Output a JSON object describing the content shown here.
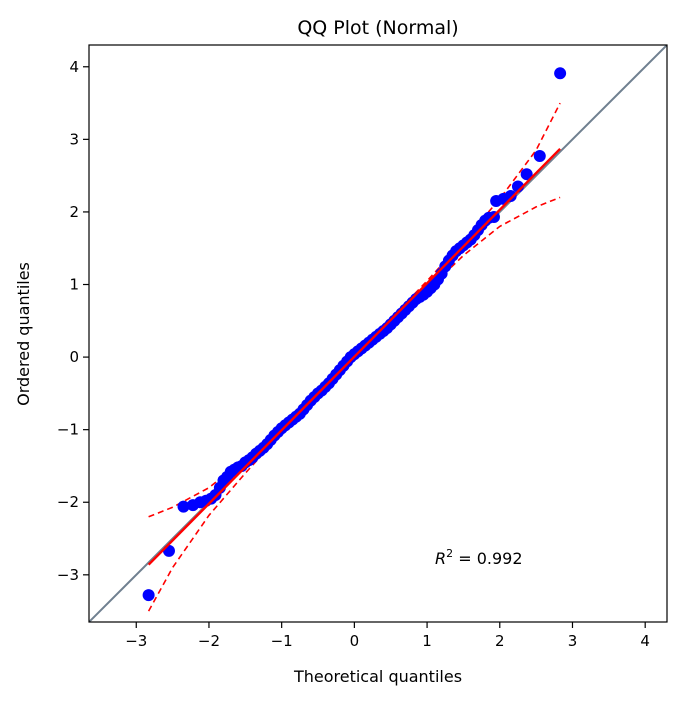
{
  "chart_data": {
    "type": "scatter",
    "title": "QQ Plot (Normal)",
    "xlabel": "Theoretical quantiles",
    "ylabel": "Ordered quantiles",
    "xlim": [
      -3.65,
      4.3
    ],
    "ylim": [
      -3.65,
      4.3
    ],
    "xticks": [
      -3,
      -2,
      -1,
      0,
      1,
      2,
      3,
      4
    ],
    "yticks": [
      -3,
      -2,
      -1,
      0,
      1,
      2,
      3,
      4
    ],
    "tick_labels": [
      "−3",
      "−2",
      "−1",
      "0",
      "1",
      "2",
      "3",
      "4"
    ],
    "grid": false,
    "annotation": {
      "prefix": "R",
      "superscript": "2",
      "text": " = 0.992"
    },
    "reference_line": {
      "from": [
        -3.65,
        -3.65
      ],
      "to": [
        4.3,
        4.3
      ],
      "color": "#708090"
    },
    "fit_line": {
      "from": [
        -2.83,
        -2.86
      ],
      "to": [
        2.83,
        2.87
      ],
      "color": "#ff0000"
    },
    "confidence_band": {
      "color": "#ff0000",
      "upper": [
        [
          -2.83,
          -2.2
        ],
        [
          -2.5,
          -2.07
        ],
        [
          -2.0,
          -1.8
        ],
        [
          -1.5,
          -1.4
        ],
        [
          -1.0,
          -0.92
        ],
        [
          -0.5,
          -0.45
        ],
        [
          0.0,
          0.03
        ],
        [
          0.5,
          0.53
        ],
        [
          1.0,
          1.05
        ],
        [
          1.5,
          1.6
        ],
        [
          2.0,
          2.18
        ],
        [
          2.5,
          2.85
        ],
        [
          2.83,
          3.5
        ]
      ],
      "lower": [
        [
          -2.83,
          -3.5
        ],
        [
          -2.5,
          -2.9
        ],
        [
          -2.0,
          -2.18
        ],
        [
          -1.5,
          -1.6
        ],
        [
          -1.0,
          -1.05
        ],
        [
          -0.5,
          -0.53
        ],
        [
          0.0,
          -0.03
        ],
        [
          0.5,
          0.45
        ],
        [
          1.0,
          0.92
        ],
        [
          1.5,
          1.4
        ],
        [
          2.0,
          1.8
        ],
        [
          2.5,
          2.07
        ],
        [
          2.83,
          2.2
        ]
      ]
    },
    "series": [
      {
        "color": "#0000ff",
        "points": [
          [
            -2.83,
            -3.28
          ],
          [
            -2.55,
            -2.67
          ],
          [
            -2.35,
            -2.06
          ],
          [
            -2.22,
            -2.04
          ],
          [
            -2.12,
            -2.0
          ],
          [
            -2.04,
            -1.98
          ],
          [
            -1.97,
            -1.95
          ],
          [
            -1.91,
            -1.9
          ],
          [
            -1.85,
            -1.8
          ],
          [
            -1.8,
            -1.7
          ],
          [
            -1.75,
            -1.65
          ],
          [
            -1.7,
            -1.58
          ],
          [
            -1.65,
            -1.55
          ],
          [
            -1.6,
            -1.52
          ],
          [
            -1.55,
            -1.5
          ],
          [
            -1.5,
            -1.45
          ],
          [
            -1.45,
            -1.42
          ],
          [
            -1.4,
            -1.38
          ],
          [
            -1.35,
            -1.33
          ],
          [
            -1.3,
            -1.29
          ],
          [
            -1.25,
            -1.25
          ],
          [
            -1.2,
            -1.2
          ],
          [
            -1.15,
            -1.14
          ],
          [
            -1.1,
            -1.08
          ],
          [
            -1.05,
            -1.03
          ],
          [
            -1.0,
            -0.98
          ],
          [
            -0.95,
            -0.94
          ],
          [
            -0.9,
            -0.9
          ],
          [
            -0.85,
            -0.86
          ],
          [
            -0.8,
            -0.82
          ],
          [
            -0.75,
            -0.78
          ],
          [
            -0.7,
            -0.72
          ],
          [
            -0.65,
            -0.66
          ],
          [
            -0.6,
            -0.6
          ],
          [
            -0.55,
            -0.55
          ],
          [
            -0.5,
            -0.5
          ],
          [
            -0.45,
            -0.46
          ],
          [
            -0.4,
            -0.41
          ],
          [
            -0.35,
            -0.36
          ],
          [
            -0.3,
            -0.3
          ],
          [
            -0.25,
            -0.24
          ],
          [
            -0.2,
            -0.18
          ],
          [
            -0.15,
            -0.12
          ],
          [
            -0.1,
            -0.06
          ],
          [
            -0.05,
            0.0
          ],
          [
            0.0,
            0.04
          ],
          [
            0.05,
            0.08
          ],
          [
            0.1,
            0.12
          ],
          [
            0.15,
            0.16
          ],
          [
            0.2,
            0.2
          ],
          [
            0.25,
            0.24
          ],
          [
            0.3,
            0.28
          ],
          [
            0.35,
            0.32
          ],
          [
            0.4,
            0.36
          ],
          [
            0.45,
            0.4
          ],
          [
            0.5,
            0.45
          ],
          [
            0.55,
            0.5
          ],
          [
            0.6,
            0.55
          ],
          [
            0.65,
            0.6
          ],
          [
            0.7,
            0.65
          ],
          [
            0.75,
            0.7
          ],
          [
            0.8,
            0.75
          ],
          [
            0.85,
            0.8
          ],
          [
            0.9,
            0.83
          ],
          [
            0.95,
            0.86
          ],
          [
            1.0,
            0.9
          ],
          [
            1.05,
            0.95
          ],
          [
            1.1,
            1.0
          ],
          [
            1.15,
            1.07
          ],
          [
            1.2,
            1.15
          ],
          [
            1.25,
            1.25
          ],
          [
            1.3,
            1.33
          ],
          [
            1.35,
            1.4
          ],
          [
            1.4,
            1.46
          ],
          [
            1.45,
            1.5
          ],
          [
            1.5,
            1.54
          ],
          [
            1.55,
            1.58
          ],
          [
            1.6,
            1.62
          ],
          [
            1.65,
            1.68
          ],
          [
            1.7,
            1.75
          ],
          [
            1.75,
            1.82
          ],
          [
            1.8,
            1.88
          ],
          [
            1.85,
            1.92
          ],
          [
            1.92,
            1.93
          ],
          [
            1.95,
            2.15
          ],
          [
            2.05,
            2.18
          ],
          [
            2.15,
            2.22
          ],
          [
            2.25,
            2.35
          ],
          [
            2.37,
            2.52
          ],
          [
            2.55,
            2.77
          ],
          [
            2.83,
            3.91
          ]
        ]
      }
    ]
  }
}
